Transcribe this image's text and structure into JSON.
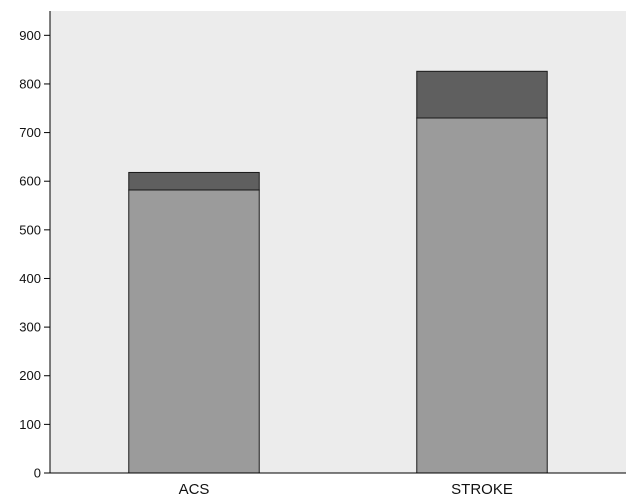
{
  "chart_data": {
    "type": "bar",
    "stacked": true,
    "categories": [
      "ACS",
      "STROKE"
    ],
    "series": [
      {
        "values": [
          582,
          730
        ],
        "color": "#9b9b9b"
      },
      {
        "values": [
          36,
          96
        ],
        "color": "#5f5f5f"
      }
    ],
    "ylim": [
      0,
      950
    ],
    "yticks": [
      0,
      100,
      200,
      300,
      400,
      500,
      600,
      700,
      800,
      900
    ],
    "ytick_labels": [
      "0",
      "100",
      "200",
      "300",
      "400",
      "500",
      "600",
      "700",
      "800",
      "900"
    ],
    "grid": false,
    "plot_background": "#ececec",
    "axis_color": "#000000",
    "legend": "none"
  }
}
